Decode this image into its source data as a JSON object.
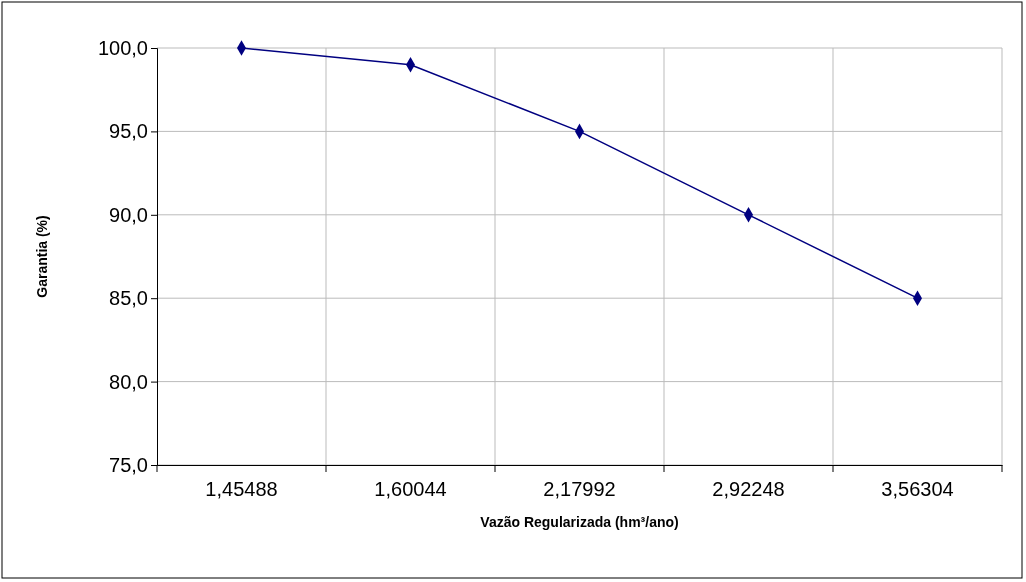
{
  "chart_data": {
    "type": "line",
    "xlabel": "Vazão Regularizada (hm³/ano)",
    "ylabel": "Garantia (%)",
    "categories": [
      "1,45488",
      "1,60044",
      "2,17992",
      "2,92248",
      "3,56304"
    ],
    "series": [
      {
        "color": "#000080",
        "values": [
          100,
          99,
          95,
          90,
          85
        ]
      }
    ],
    "ylim": [
      75,
      100
    ],
    "yticks": [
      {
        "value": 75,
        "label": "75,0"
      },
      {
        "value": 80,
        "label": "80,0"
      },
      {
        "value": 85,
        "label": "85,0"
      },
      {
        "value": 90,
        "label": "90,0"
      },
      {
        "value": 95,
        "label": "95,0"
      },
      {
        "value": 100,
        "label": "100,0"
      }
    ],
    "grid": true,
    "marker": "diamond",
    "line_style": "solid"
  }
}
